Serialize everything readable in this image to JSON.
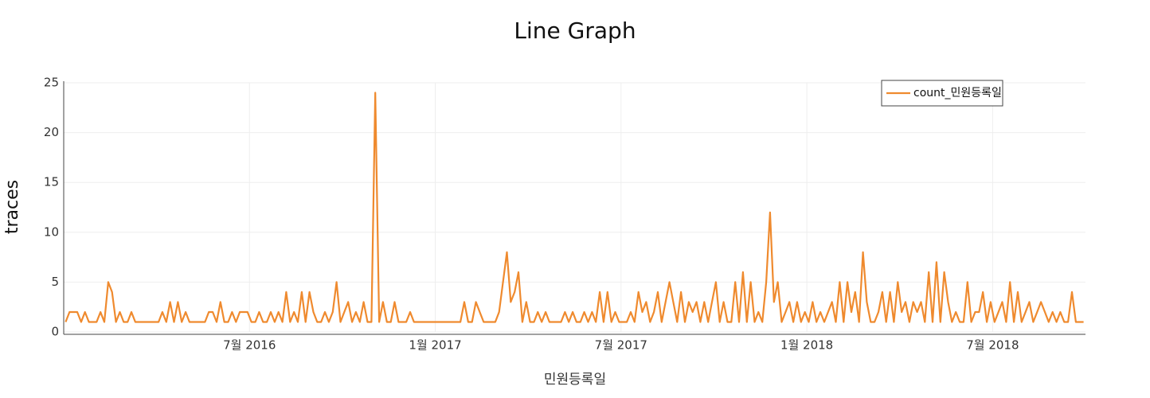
{
  "chart_data": {
    "type": "line",
    "title": "Line Graph",
    "x_label": "민원등록일",
    "y_label": "traces",
    "xlim": [
      "2016-01",
      "2018-10"
    ],
    "xticks": [
      {
        "value": "2016-07",
        "label": "7월 2016"
      },
      {
        "value": "2017-01",
        "label": "1월 2017"
      },
      {
        "value": "2017-07",
        "label": "7월 2017"
      },
      {
        "value": "2018-01",
        "label": "1월 2018"
      },
      {
        "value": "2018-07",
        "label": "7월 2018"
      }
    ],
    "ylim": [
      0,
      25
    ],
    "yticks": [
      0,
      5,
      10,
      15,
      20,
      25
    ],
    "grid": true,
    "legend": "top-right",
    "x": [
      "2016-01",
      "2016-01",
      "2016-01",
      "2016-01",
      "2016-01",
      "2016-01",
      "2016-01",
      "2016-01",
      "2016-02",
      "2016-02",
      "2016-02",
      "2016-02",
      "2016-02",
      "2016-02",
      "2016-02",
      "2016-02",
      "2016-03",
      "2016-03",
      "2016-03",
      "2016-03",
      "2016-03",
      "2016-03",
      "2016-03",
      "2016-03",
      "2016-04",
      "2016-04",
      "2016-04",
      "2016-04",
      "2016-04",
      "2016-04",
      "2016-04",
      "2016-04",
      "2016-05",
      "2016-05",
      "2016-05",
      "2016-05",
      "2016-05",
      "2016-05",
      "2016-05",
      "2016-05",
      "2016-06",
      "2016-06",
      "2016-06",
      "2016-06",
      "2016-06",
      "2016-06",
      "2016-06",
      "2016-06",
      "2016-07",
      "2016-07",
      "2016-07",
      "2016-07",
      "2016-07",
      "2016-07",
      "2016-07",
      "2016-07",
      "2016-08",
      "2016-08",
      "2016-08",
      "2016-08",
      "2016-08",
      "2016-08",
      "2016-08",
      "2016-08",
      "2016-09",
      "2016-09",
      "2016-09",
      "2016-09",
      "2016-09",
      "2016-09",
      "2016-09",
      "2016-09",
      "2016-10",
      "2016-10",
      "2016-10",
      "2016-10",
      "2016-10",
      "2016-10",
      "2016-10",
      "2016-10",
      "2016-11",
      "2016-11",
      "2016-11",
      "2016-11",
      "2016-11",
      "2016-11",
      "2016-11",
      "2016-11",
      "2016-12",
      "2016-12",
      "2016-12",
      "2016-12",
      "2016-12",
      "2016-12",
      "2016-12",
      "2016-12",
      "2017-01",
      "2017-01",
      "2017-01",
      "2017-01",
      "2017-01",
      "2017-01",
      "2017-01",
      "2017-01",
      "2017-02",
      "2017-02",
      "2017-02",
      "2017-02",
      "2017-02",
      "2017-02",
      "2017-02",
      "2017-02",
      "2017-03",
      "2017-03",
      "2017-03",
      "2017-03",
      "2017-03",
      "2017-03",
      "2017-03",
      "2017-03",
      "2017-04",
      "2017-04",
      "2017-04",
      "2017-04",
      "2017-04",
      "2017-04",
      "2017-04",
      "2017-04",
      "2017-05",
      "2017-05",
      "2017-05",
      "2017-05",
      "2017-05",
      "2017-05",
      "2017-05",
      "2017-05",
      "2017-06",
      "2017-06",
      "2017-06",
      "2017-06",
      "2017-06",
      "2017-06",
      "2017-06",
      "2017-06",
      "2017-07",
      "2017-07",
      "2017-07",
      "2017-07",
      "2017-07",
      "2017-07",
      "2017-07",
      "2017-07",
      "2017-08",
      "2017-08",
      "2017-08",
      "2017-08",
      "2017-08",
      "2017-08",
      "2017-08",
      "2017-08",
      "2017-09",
      "2017-09",
      "2017-09",
      "2017-09",
      "2017-09",
      "2017-09",
      "2017-09",
      "2017-09",
      "2017-10",
      "2017-10",
      "2017-10",
      "2017-10",
      "2017-10",
      "2017-10",
      "2017-10",
      "2017-10",
      "2017-11",
      "2017-11",
      "2017-11",
      "2017-11",
      "2017-11",
      "2017-11",
      "2017-11",
      "2017-11",
      "2017-12",
      "2017-12",
      "2017-12",
      "2017-12",
      "2017-12",
      "2017-12",
      "2017-12",
      "2017-12",
      "2018-01",
      "2018-01",
      "2018-01",
      "2018-01",
      "2018-01",
      "2018-01",
      "2018-01",
      "2018-01",
      "2018-02",
      "2018-02",
      "2018-02",
      "2018-02",
      "2018-02",
      "2018-02",
      "2018-02",
      "2018-02",
      "2018-03",
      "2018-03",
      "2018-03",
      "2018-03",
      "2018-03",
      "2018-03",
      "2018-03",
      "2018-03",
      "2018-04",
      "2018-04",
      "2018-04",
      "2018-04",
      "2018-04",
      "2018-04",
      "2018-04",
      "2018-04",
      "2018-05",
      "2018-05",
      "2018-05",
      "2018-05",
      "2018-05",
      "2018-05",
      "2018-05",
      "2018-05",
      "2018-06",
      "2018-06",
      "2018-06",
      "2018-06",
      "2018-06",
      "2018-06",
      "2018-06",
      "2018-06",
      "2018-07",
      "2018-07",
      "2018-07",
      "2018-07",
      "2018-07",
      "2018-07",
      "2018-07",
      "2018-07",
      "2018-08",
      "2018-08",
      "2018-08",
      "2018-08",
      "2018-08",
      "2018-08",
      "2018-08",
      "2018-08",
      "2018-09",
      "2018-09",
      "2018-09",
      "2018-09",
      "2018-09",
      "2018-09",
      "2018-09",
      "2018-09"
    ],
    "series": [
      {
        "name": "count_민원등록일",
        "color": "#ef8a2e",
        "values": [
          1,
          2,
          2,
          2,
          1,
          2,
          1,
          1,
          1,
          2,
          1,
          5,
          4,
          1,
          2,
          1,
          1,
          2,
          1,
          1,
          1,
          1,
          1,
          1,
          1,
          2,
          1,
          3,
          1,
          3,
          1,
          2,
          1,
          1,
          1,
          1,
          1,
          2,
          2,
          1,
          3,
          1,
          1,
          2,
          1,
          2,
          2,
          2,
          1,
          1,
          2,
          1,
          1,
          2,
          1,
          2,
          1,
          4,
          1,
          2,
          1,
          4,
          1,
          4,
          2,
          1,
          1,
          2,
          1,
          2,
          5,
          1,
          2,
          3,
          1,
          2,
          1,
          3,
          1,
          1,
          24,
          1,
          3,
          1,
          1,
          3,
          1,
          1,
          1,
          2,
          1,
          1,
          1,
          1,
          1,
          1,
          1,
          1,
          1,
          1,
          1,
          1,
          1,
          3,
          1,
          1,
          3,
          2,
          1,
          1,
          1,
          1,
          2,
          5,
          8,
          3,
          4,
          6,
          1,
          3,
          1,
          1,
          2,
          1,
          2,
          1,
          1,
          1,
          1,
          2,
          1,
          2,
          1,
          1,
          2,
          1,
          2,
          1,
          4,
          1,
          4,
          1,
          2,
          1,
          1,
          1,
          2,
          1,
          4,
          2,
          3,
          1,
          2,
          4,
          1,
          3,
          5,
          3,
          1,
          4,
          1,
          3,
          2,
          3,
          1,
          3,
          1,
          3,
          5,
          1,
          3,
          1,
          1,
          5,
          1,
          6,
          1,
          5,
          1,
          2,
          1,
          5,
          12,
          3,
          5,
          1,
          2,
          3,
          1,
          3,
          1,
          2,
          1,
          3,
          1,
          2,
          1,
          2,
          3,
          1,
          5,
          1,
          5,
          2,
          4,
          1,
          8,
          3,
          1,
          1,
          2,
          4,
          1,
          4,
          1,
          5,
          2,
          3,
          1,
          3,
          2,
          3,
          1,
          6,
          1,
          7,
          1,
          6,
          3,
          1,
          2,
          1,
          1,
          5,
          1,
          2,
          2,
          4,
          1,
          3,
          1,
          2,
          3,
          1,
          5,
          1,
          4,
          1,
          2,
          3,
          1,
          2,
          3,
          2,
          1,
          2,
          1,
          2,
          1,
          1,
          4,
          1,
          1,
          1
        ]
      }
    ]
  }
}
